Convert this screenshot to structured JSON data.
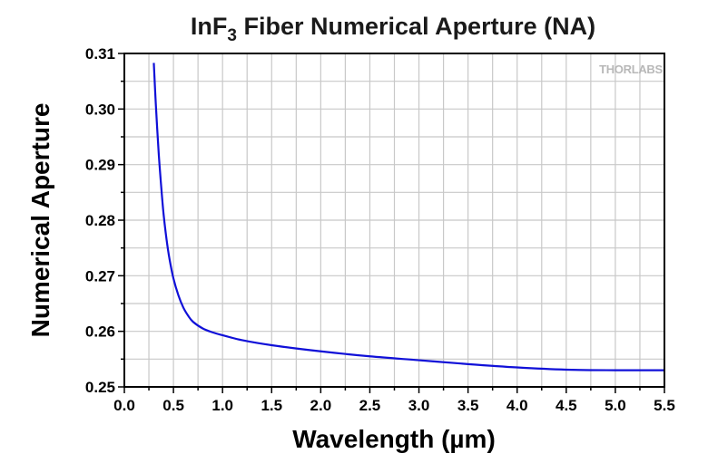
{
  "chart_data": {
    "type": "line",
    "title": "InF",
    "title_subscript": "3",
    "title_rest": " Fiber Numerical Aperture (NA)",
    "xlabel": "Wavelength (µm)",
    "ylabel": "Numerical Aperture",
    "xlim": [
      0.0,
      5.5
    ],
    "ylim": [
      0.25,
      0.31
    ],
    "x_ticks": [
      0.0,
      0.5,
      1.0,
      1.5,
      2.0,
      2.5,
      3.0,
      3.5,
      4.0,
      4.5,
      5.0,
      5.5
    ],
    "x_tick_labels": [
      "0.0",
      "0.5",
      "1.0",
      "1.5",
      "2.0",
      "2.5",
      "3.0",
      "3.5",
      "4.0",
      "4.5",
      "5.0",
      "5.5"
    ],
    "y_ticks": [
      0.25,
      0.26,
      0.27,
      0.28,
      0.29,
      0.3,
      0.31
    ],
    "y_tick_labels": [
      "0.25",
      "0.26",
      "0.27",
      "0.28",
      "0.29",
      "0.30",
      "0.31"
    ],
    "grid": true,
    "legend": "none",
    "watermark": "THORLABS",
    "series": [
      {
        "name": "NA",
        "color": "#1010d8",
        "x": [
          0.3,
          0.32,
          0.35,
          0.38,
          0.4,
          0.43,
          0.46,
          0.5,
          0.55,
          0.6,
          0.65,
          0.7,
          0.8,
          0.9,
          1.0,
          1.2,
          1.5,
          2.0,
          2.5,
          3.0,
          3.5,
          4.0,
          4.5,
          5.0,
          5.5
        ],
        "y": [
          0.3083,
          0.301,
          0.292,
          0.285,
          0.281,
          0.2765,
          0.273,
          0.2695,
          0.2665,
          0.2643,
          0.2628,
          0.2617,
          0.2605,
          0.2598,
          0.2593,
          0.2584,
          0.2575,
          0.2564,
          0.2555,
          0.2548,
          0.2541,
          0.2535,
          0.2531,
          0.253,
          0.253
        ]
      }
    ]
  }
}
